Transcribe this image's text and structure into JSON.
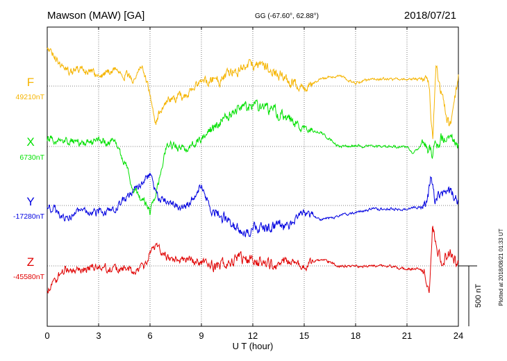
{
  "header": {
    "station": "Mawson (MAW)  [GA]",
    "coords": "GG (-67.60°,  62.88°)",
    "date": "2018/07/21"
  },
  "footer_note": "Plotted at 2018/08/21 01:33 UT",
  "scale_label": "500 nT",
  "chart_data": {
    "type": "line",
    "title": "Mawson (MAW)  [GA]",
    "xlabel": "U T (hour)",
    "xlim": [
      0,
      24
    ],
    "xticks": [
      0,
      3,
      6,
      9,
      12,
      15,
      18,
      21,
      24
    ],
    "grid": true,
    "scale_bar_nT": 500,
    "series": [
      {
        "name": "F",
        "baseline_label": "49210nT",
        "color": "#f5b400",
        "keypoints": [
          [
            0,
            -55
          ],
          [
            0.5,
            -40
          ],
          [
            1,
            -25
          ],
          [
            1.5,
            -20
          ],
          [
            2,
            -25
          ],
          [
            3,
            -15
          ],
          [
            4,
            -25
          ],
          [
            5,
            -10
          ],
          [
            5.5,
            -30
          ],
          [
            6,
            10
          ],
          [
            6.3,
            60
          ],
          [
            6.5,
            40
          ],
          [
            7,
            20
          ],
          [
            8,
            15
          ],
          [
            9,
            -5
          ],
          [
            10,
            -10
          ],
          [
            11,
            -25
          ],
          [
            12,
            -30
          ],
          [
            13,
            -25
          ],
          [
            14,
            -10
          ],
          [
            15,
            5
          ],
          [
            15.5,
            -5
          ],
          [
            16,
            -10
          ],
          [
            17,
            -15
          ],
          [
            18,
            -5
          ],
          [
            19,
            -10
          ],
          [
            20,
            -10
          ],
          [
            21,
            -10
          ],
          [
            22,
            -10
          ],
          [
            22.3,
            -5
          ],
          [
            22.5,
            80
          ],
          [
            22.7,
            -30
          ],
          [
            23,
            10
          ],
          [
            23.5,
            60
          ],
          [
            24,
            -10
          ]
        ]
      },
      {
        "name": "X",
        "baseline_label": "6730nT",
        "color": "#00e000",
        "keypoints": [
          [
            0,
            -10
          ],
          [
            1,
            -10
          ],
          [
            2,
            -5
          ],
          [
            3,
            -10
          ],
          [
            4,
            -5
          ],
          [
            4.5,
            20
          ],
          [
            5,
            60
          ],
          [
            5.5,
            75
          ],
          [
            6,
            95
          ],
          [
            6.5,
            50
          ],
          [
            7,
            -5
          ],
          [
            8,
            5
          ],
          [
            9,
            -10
          ],
          [
            10,
            -35
          ],
          [
            11,
            -55
          ],
          [
            12,
            -60
          ],
          [
            13,
            -55
          ],
          [
            14,
            -40
          ],
          [
            15,
            -25
          ],
          [
            16,
            -20
          ],
          [
            17,
            0
          ],
          [
            18,
            0
          ],
          [
            19,
            0
          ],
          [
            20,
            0
          ],
          [
            21,
            0
          ],
          [
            21.3,
            10
          ],
          [
            22,
            -5
          ],
          [
            22.5,
            10
          ],
          [
            23,
            -15
          ],
          [
            24,
            0
          ]
        ]
      },
      {
        "name": "Y",
        "baseline_label": "-17280nT",
        "color": "#0000e0",
        "keypoints": [
          [
            0,
            0
          ],
          [
            1,
            15
          ],
          [
            2,
            10
          ],
          [
            3,
            10
          ],
          [
            4,
            5
          ],
          [
            5,
            -20
          ],
          [
            6,
            -45
          ],
          [
            6.5,
            -10
          ],
          [
            7,
            -5
          ],
          [
            8,
            5
          ],
          [
            8.5,
            -10
          ],
          [
            9,
            -30
          ],
          [
            9.5,
            5
          ],
          [
            10,
            10
          ],
          [
            11,
            35
          ],
          [
            12,
            35
          ],
          [
            13,
            30
          ],
          [
            14,
            30
          ],
          [
            15,
            10
          ],
          [
            16,
            20
          ],
          [
            17,
            15
          ],
          [
            18,
            10
          ],
          [
            19,
            5
          ],
          [
            20,
            5
          ],
          [
            21,
            5
          ],
          [
            22,
            0
          ],
          [
            22.2,
            -5
          ],
          [
            22.4,
            -45
          ],
          [
            22.6,
            -10
          ],
          [
            23,
            -15
          ],
          [
            23.5,
            -20
          ],
          [
            24,
            -5
          ]
        ]
      },
      {
        "name": "Z",
        "baseline_label": "-45580nT",
        "color": "#e00000",
        "keypoints": [
          [
            0,
            35
          ],
          [
            0.5,
            20
          ],
          [
            1,
            5
          ],
          [
            2,
            5
          ],
          [
            3,
            0
          ],
          [
            4,
            5
          ],
          [
            5,
            5
          ],
          [
            5.8,
            0
          ],
          [
            6,
            -20
          ],
          [
            6.5,
            -30
          ],
          [
            7,
            -10
          ],
          [
            8,
            -10
          ],
          [
            9,
            -5
          ],
          [
            10,
            0
          ],
          [
            11,
            -10
          ],
          [
            12,
            -10
          ],
          [
            13,
            0
          ],
          [
            14,
            -5
          ],
          [
            15,
            0
          ],
          [
            16,
            -10
          ],
          [
            17,
            0
          ],
          [
            18,
            0
          ],
          [
            19,
            0
          ],
          [
            20,
            0
          ],
          [
            21,
            5
          ],
          [
            22,
            5
          ],
          [
            22.3,
            40
          ],
          [
            22.5,
            -60
          ],
          [
            22.7,
            -30
          ],
          [
            23,
            -5
          ],
          [
            23.5,
            -20
          ],
          [
            24,
            0
          ]
        ]
      }
    ]
  }
}
